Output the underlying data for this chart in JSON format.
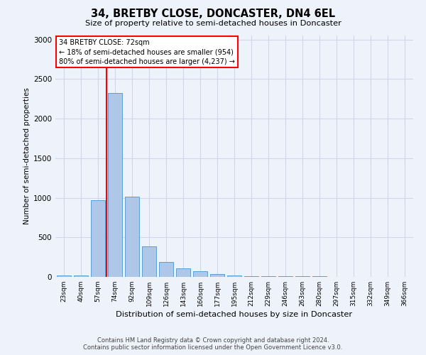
{
  "title": "34, BRETBY CLOSE, DONCASTER, DN4 6EL",
  "subtitle": "Size of property relative to semi-detached houses in Doncaster",
  "xlabel": "Distribution of semi-detached houses by size in Doncaster",
  "ylabel": "Number of semi-detached properties",
  "footer_line1": "Contains HM Land Registry data © Crown copyright and database right 2024.",
  "footer_line2": "Contains public sector information licensed under the Open Government Licence v3.0.",
  "bar_labels": [
    "23sqm",
    "40sqm",
    "57sqm",
    "74sqm",
    "92sqm",
    "109sqm",
    "126sqm",
    "143sqm",
    "160sqm",
    "177sqm",
    "195sqm",
    "212sqm",
    "229sqm",
    "246sqm",
    "263sqm",
    "280sqm",
    "297sqm",
    "315sqm",
    "332sqm",
    "349sqm",
    "366sqm"
  ],
  "bar_values": [
    20,
    20,
    970,
    2320,
    1010,
    390,
    185,
    110,
    70,
    40,
    15,
    10,
    10,
    5,
    5,
    5,
    3,
    3,
    3,
    3,
    3
  ],
  "bar_color": "#aec6e8",
  "bar_edge_color": "#5a9fd4",
  "grid_color": "#d0d8e8",
  "background_color": "#eef2fa",
  "vline_color": "red",
  "vline_bin_index": 3,
  "annotation_line1": "34 BRETBY CLOSE: 72sqm",
  "annotation_line2": "← 18% of semi-detached houses are smaller (954)",
  "annotation_line3": "80% of semi-detached houses are larger (4,237) →",
  "annotation_box_color": "white",
  "annotation_box_edge": "red",
  "ylim": [
    0,
    3050
  ],
  "yticks": [
    0,
    500,
    1000,
    1500,
    2000,
    2500,
    3000
  ]
}
